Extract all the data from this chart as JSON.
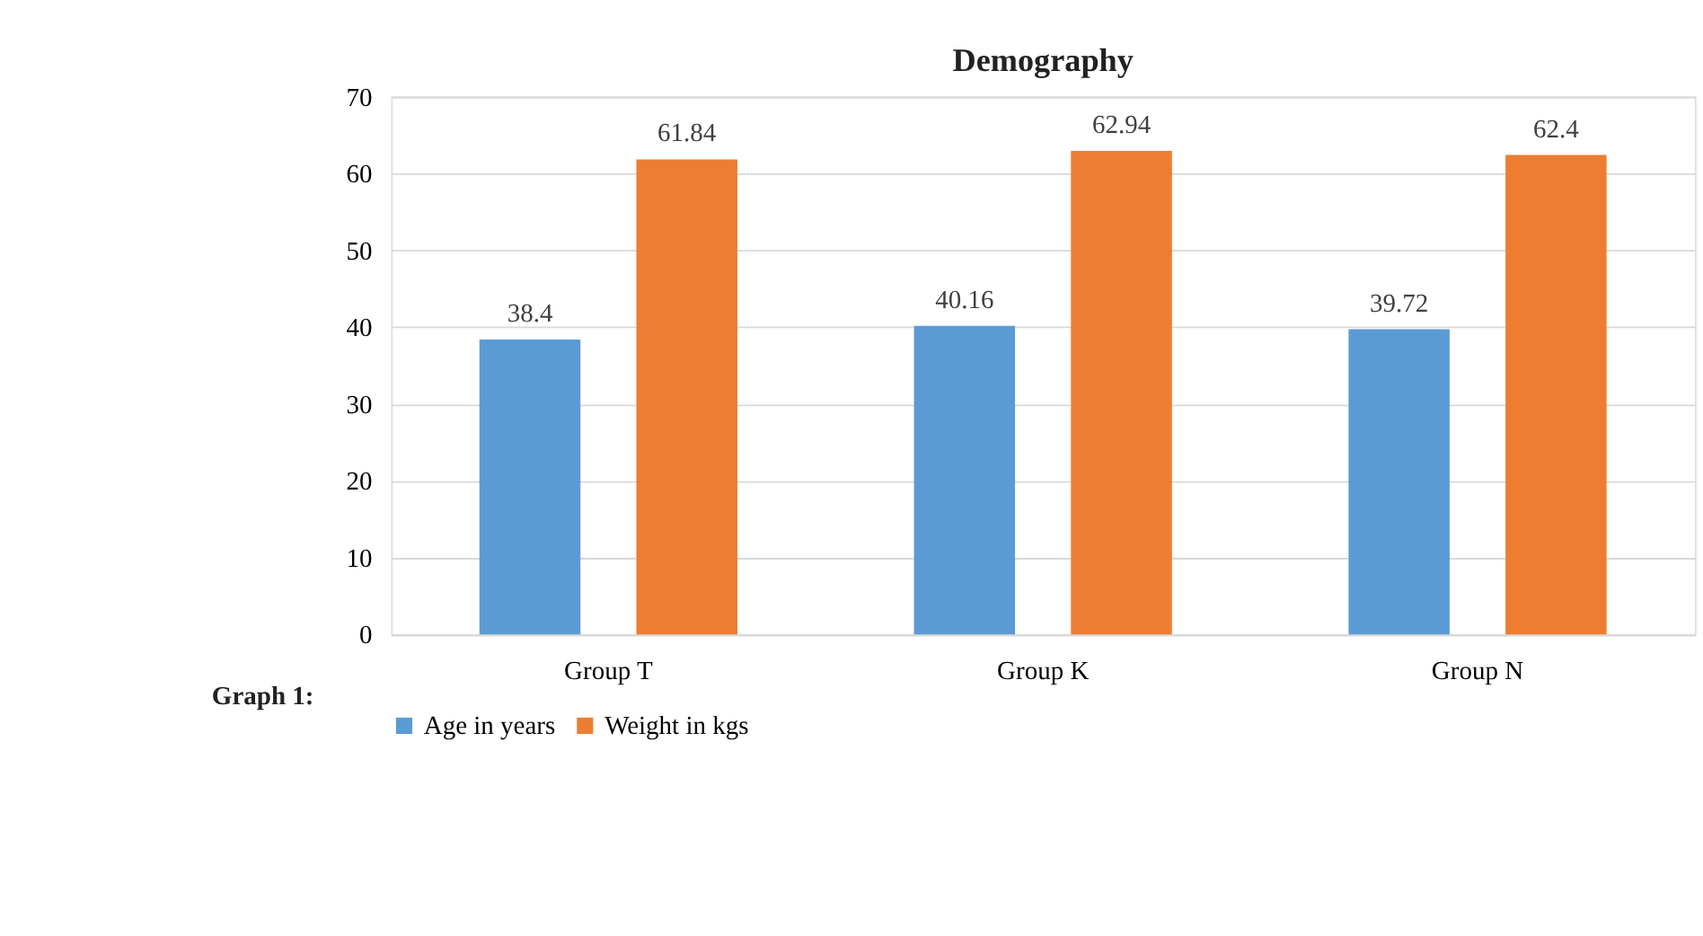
{
  "chart_data": {
    "type": "bar",
    "title": "Demography",
    "categories": [
      "Group T",
      "Group K",
      "Group N"
    ],
    "series": [
      {
        "name": "Age in years",
        "color": "#5b9bd5",
        "values": [
          38.4,
          40.16,
          39.72
        ]
      },
      {
        "name": "Weight in kgs",
        "color": "#ed7d31",
        "values": [
          61.84,
          62.94,
          62.4
        ]
      }
    ],
    "ylim": [
      0,
      70
    ],
    "yticks": [
      0,
      10,
      20,
      30,
      40,
      50,
      60,
      70
    ],
    "grid": "y",
    "legend": "bottom",
    "data_labels": true,
    "annotations": [
      "Graph 1:"
    ]
  }
}
